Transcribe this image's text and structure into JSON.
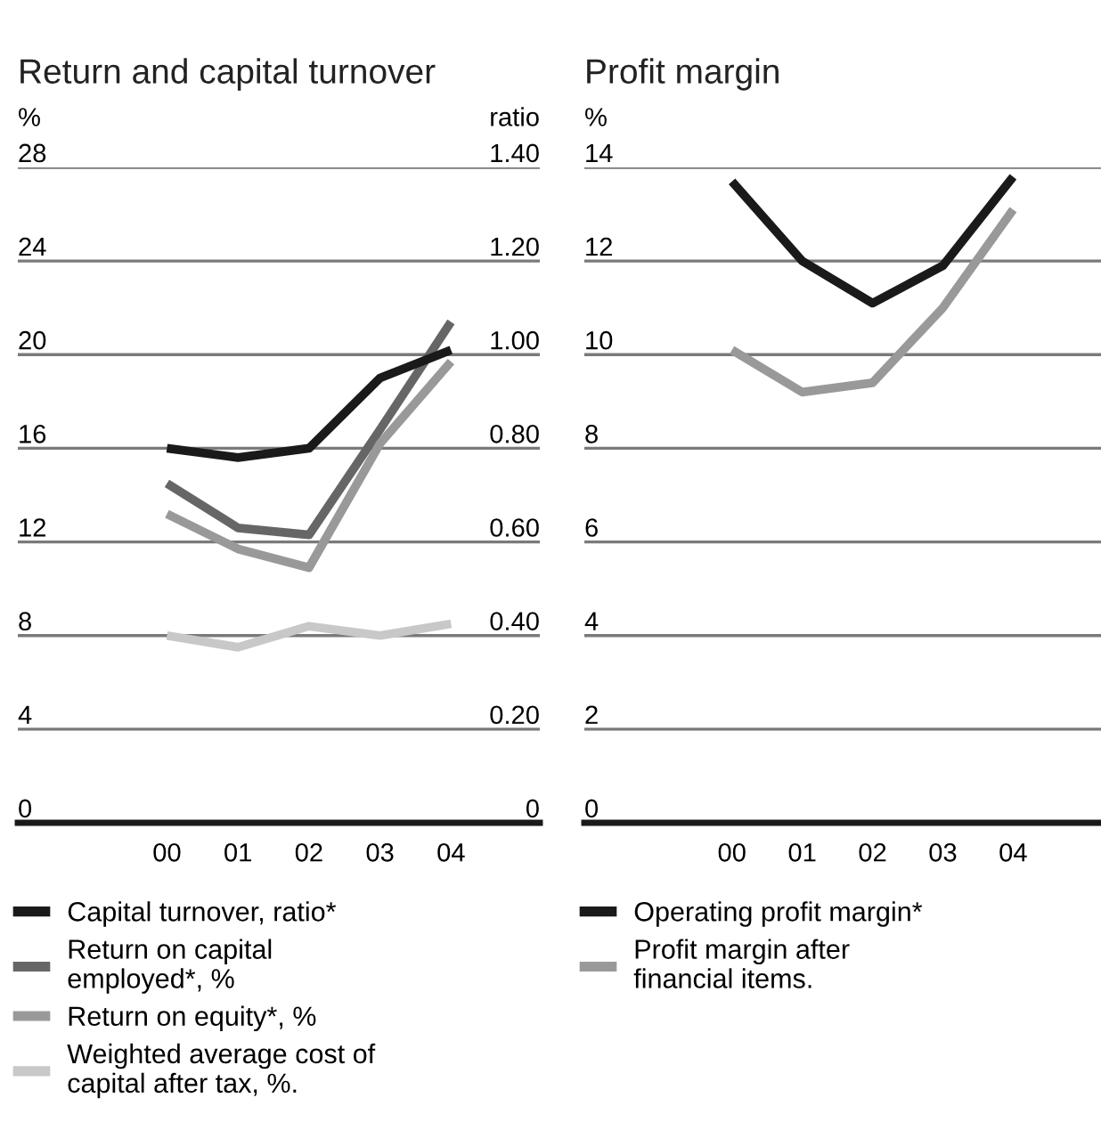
{
  "chart_data": [
    {
      "type": "line",
      "title": "Return and capital turnover",
      "ylabel": "%",
      "y2label": "ratio",
      "categories": [
        "00",
        "01",
        "02",
        "03",
        "04"
      ],
      "series": [
        {
          "name": "Capital turnover, ratio*",
          "color": "#1a1a1a",
          "axis": "y2",
          "values": [
            0.8,
            0.78,
            0.8,
            0.95,
            1.01
          ]
        },
        {
          "name": "Return on capital employed*, %",
          "color": "#666666",
          "values": [
            14.5,
            12.6,
            12.3,
            16.8,
            21.4
          ]
        },
        {
          "name": "Return on equity*, %",
          "color": "#999999",
          "values": [
            13.2,
            11.7,
            10.9,
            16.2,
            19.7
          ]
        },
        {
          "name": "Weighted average cost of capital after tax, %.",
          "color": "#c8c8c8",
          "values": [
            8.0,
            7.5,
            8.4,
            8.0,
            8.5
          ]
        }
      ],
      "ylim": [
        0,
        28
      ],
      "yticks": [
        0,
        4,
        8,
        12,
        16,
        20,
        24,
        28
      ],
      "y2lim": [
        0,
        1.4
      ],
      "y2ticks": [
        0,
        {
          "value": 0.2,
          "label": "0.20"
        },
        {
          "value": 0.4,
          "label": "0.40"
        },
        {
          "value": 0.6,
          "label": "0.60"
        },
        {
          "value": 0.8,
          "label": "0.80"
        },
        {
          "value": 1.0,
          "label": "1.00"
        },
        {
          "value": 1.2,
          "label": "1.20"
        },
        {
          "value": 1.4,
          "label": "1.40"
        }
      ],
      "grid": "y",
      "legend": "bottom",
      "marker": "none",
      "line_style": "solid"
    },
    {
      "type": "line",
      "title": "Profit margin",
      "ylabel": "%",
      "categories": [
        "00",
        "01",
        "02",
        "03",
        "04"
      ],
      "series": [
        {
          "name": "Operating profit margin*",
          "color": "#1a1a1a",
          "values": [
            13.7,
            12.0,
            11.1,
            11.9,
            13.8
          ]
        },
        {
          "name": "Profit margin after financial items.",
          "color": "#999999",
          "values": [
            10.1,
            9.2,
            9.4,
            11.0,
            13.1
          ]
        }
      ],
      "ylim": [
        0,
        14
      ],
      "yticks": [
        0,
        2,
        4,
        6,
        8,
        10,
        12,
        14
      ],
      "grid": "y",
      "legend": "bottom",
      "marker": "none",
      "line_style": "solid"
    }
  ]
}
